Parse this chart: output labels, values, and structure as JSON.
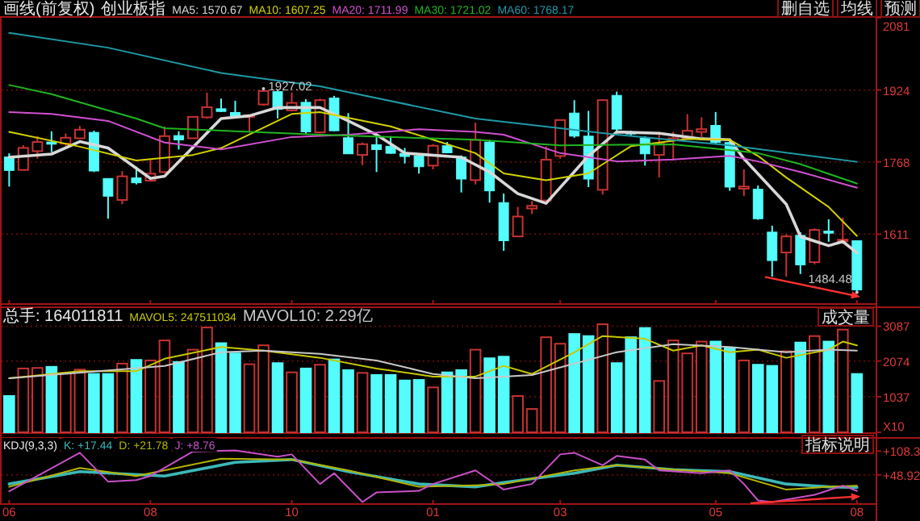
{
  "chart_data": [
    {
      "type": "candlestick",
      "subtitle": "画线(前复权)",
      "title": "创业板指",
      "categories": [
        "06",
        null,
        null,
        null,
        null,
        null,
        null,
        null,
        null,
        null,
        "08",
        null,
        null,
        null,
        null,
        null,
        null,
        null,
        null,
        null,
        "10",
        null,
        null,
        null,
        null,
        null,
        null,
        null,
        null,
        null,
        "01",
        null,
        null,
        null,
        null,
        null,
        null,
        null,
        null,
        "03",
        null,
        null,
        null,
        null,
        null,
        null,
        null,
        null,
        null,
        null,
        "05",
        null,
        null,
        null,
        null,
        null,
        null,
        null,
        null,
        null,
        "08"
      ],
      "ohlc": [
        [
          1778.5,
          1786.6,
          1714.4,
          1749.4
        ],
        [
          1750.5,
          1804.1,
          1749.4,
          1798.3
        ],
        [
          1791.3,
          1823.9,
          1775,
          1811.1
        ],
        [
          1811.1,
          1834.4,
          1789,
          1806.4
        ],
        [
          1807.6,
          1829.7,
          1803,
          1820.4
        ],
        [
          1819.2,
          1846,
          1819.2,
          1837.9
        ],
        [
          1832.1,
          1835.6,
          1745.9,
          1748.2
        ],
        [
          1731.9,
          1731.9,
          1644.5,
          1693.5
        ],
        [
          1685.3,
          1748.2,
          1676,
          1736.6
        ],
        [
          1733.1,
          1757.5,
          1719.1,
          1722.6
        ],
        [
          1727.2,
          1773.8,
          1725,
          1742.4
        ],
        [
          1745.9,
          1844.9,
          1743.5,
          1823.9
        ],
        [
          1825.1,
          1834.4,
          1794.8,
          1815.8
        ],
        [
          1819.2,
          1865.8,
          1819.2,
          1865.8
        ],
        [
          1864.7,
          1918.3,
          1862.3,
          1886.8
        ],
        [
          1883.3,
          1905.4,
          1876.3,
          1877.5
        ],
        [
          1875.2,
          1900.8,
          1862.3,
          1868.2
        ],
        [
          1867,
          1870.5,
          1832.1,
          1869.3
        ],
        [
          1892.6,
          1927.02,
          1890.3,
          1922
        ],
        [
          1920.6,
          1922.9,
          1862.3,
          1882.1
        ],
        [
          1879.8,
          1918.3,
          1877.5,
          1896.1
        ],
        [
          1897.3,
          1904.3,
          1827.4,
          1833.2
        ],
        [
          1832.1,
          1905.4,
          1829.7,
          1902
        ],
        [
          1906.6,
          1911.3,
          1834.4,
          1835.6
        ],
        [
          1820.4,
          1874,
          1785.5,
          1785.5
        ],
        [
          1783.2,
          1810,
          1761,
          1806.4
        ],
        [
          1805.3,
          1821.6,
          1745.9,
          1794.8
        ],
        [
          1801.8,
          1823.9,
          1785.5,
          1786.6
        ],
        [
          1786.6,
          1798.3,
          1764.5,
          1779.7
        ],
        [
          1780.8,
          1783.2,
          1742.4,
          1757.5
        ],
        [
          1759.9,
          1806.4,
          1751.7,
          1803
        ],
        [
          1803,
          1811.1,
          1786.6,
          1787.8
        ],
        [
          1778.5,
          1782,
          1701.6,
          1730.7
        ],
        [
          1728.4,
          1853,
          1719.1,
          1815.8
        ],
        [
          1811.1,
          1815.8,
          1679.5,
          1705.1
        ],
        [
          1679.5,
          1699.3,
          1574.7,
          1596.8
        ],
        [
          1606.1,
          1670.2,
          1604.9,
          1649.2
        ],
        [
          1666.7,
          1683,
          1655,
          1672.5
        ],
        [
          1684.1,
          1801.8,
          1678.3,
          1772.7
        ],
        [
          1780.8,
          1858.9,
          1775,
          1858.9
        ],
        [
          1874,
          1902,
          1820.4,
          1823.9
        ],
        [
          1823.9,
          1878.7,
          1713.3,
          1730.7
        ],
        [
          1707.4,
          1902,
          1697,
          1902
        ],
        [
          1912.4,
          1920.6,
          1833.2,
          1839.1
        ],
        [
          1832.1,
          1835.6,
          1823.9,
          1828.6
        ],
        [
          1819.2,
          1823.9,
          1759.9,
          1785.5
        ],
        [
          1783.2,
          1833.2,
          1734.2,
          1807.6
        ],
        [
          1814.6,
          1833.2,
          1771.5,
          1819.2
        ],
        [
          1819.2,
          1871.7,
          1819.2,
          1835.6
        ],
        [
          1833.2,
          1864.7,
          1821.6,
          1839.1
        ],
        [
          1847.2,
          1876.3,
          1807.6,
          1810
        ],
        [
          1810,
          1815.8,
          1705.1,
          1713.3
        ],
        [
          1709.8,
          1751.7,
          1693.5,
          1714.4
        ],
        [
          1708.6,
          1716.8,
          1642.2,
          1644.5
        ],
        [
          1615.4,
          1629.4,
          1518.8,
          1553.7
        ],
        [
          1571.2,
          1610.8,
          1518.8,
          1606.1
        ],
        [
          1608.4,
          1615.4,
          1524.6,
          1544.4
        ],
        [
          1550.2,
          1623.6,
          1545.5,
          1620.1
        ],
        [
          1617.8,
          1643.4,
          1594.5,
          1613.1
        ],
        [
          1596.8,
          1646.9,
          1595.6,
          1599.1
        ],
        [
          1596.8,
          1596.8,
          1484.48,
          1490
        ]
      ],
      "series": [
        {
          "name": "MA5: 1570.67",
          "type": "line",
          "color": "#d8d8d8",
          "values": [
            1778,
            null,
            null,
            1785,
            null,
            1812,
            null,
            1798,
            null,
            null,
            1732,
            1737,
            null,
            null,
            null,
            1862,
            null,
            1868,
            null,
            1886,
            null,
            null,
            1886,
            null,
            1857,
            null,
            1827,
            null,
            1787,
            null,
            null,
            null,
            1778,
            null,
            1746,
            null,
            1699,
            null,
            1678,
            null,
            null,
            1781,
            null,
            1833,
            null,
            null,
            1830,
            null,
            null,
            1818,
            null,
            1816,
            1775,
            null,
            null,
            1676,
            1606,
            null,
            1586,
            1595,
            1570.67
          ]
        },
        {
          "name": "MA10: 1607.25",
          "type": "line",
          "color": "#d2d200",
          "values": [
            1833,
            null,
            null,
            null,
            null,
            1801,
            null,
            null,
            null,
            1771,
            null,
            null,
            null,
            1783,
            null,
            1798,
            null,
            null,
            null,
            null,
            1872,
            null,
            1876,
            null,
            null,
            null,
            null,
            1845,
            null,
            null,
            1816,
            null,
            null,
            1787,
            null,
            1743,
            null,
            null,
            1728,
            null,
            null,
            1743,
            null,
            null,
            1802,
            null,
            null,
            null,
            1818,
            null,
            null,
            1816,
            null,
            1781,
            null,
            1734,
            null,
            null,
            1670,
            null,
            1607.25
          ]
        },
        {
          "name": "MA20: 1711.99",
          "type": "line",
          "color": "#d050d0",
          "values": [
            1876,
            null,
            null,
            1872,
            null,
            null,
            null,
            1857,
            null,
            null,
            null,
            1810,
            null,
            null,
            null,
            1795,
            null,
            null,
            null,
            null,
            1822,
            null,
            null,
            null,
            1827,
            null,
            null,
            null,
            null,
            1839,
            null,
            null,
            null,
            1833,
            null,
            1827,
            null,
            null,
            null,
            1787,
            null,
            null,
            null,
            1769,
            null,
            null,
            null,
            1773,
            null,
            null,
            null,
            1781,
            null,
            1769,
            null,
            null,
            1746,
            null,
            null,
            null,
            1711.99
          ]
        },
        {
          "name": "MA30: 1721.02",
          "type": "line",
          "color": "#20b420",
          "values": [
            1935,
            null,
            null,
            1915,
            null,
            null,
            null,
            null,
            null,
            1862,
            null,
            1841,
            null,
            null,
            null,
            1836,
            null,
            null,
            null,
            null,
            null,
            null,
            1827,
            null,
            null,
            null,
            null,
            null,
            null,
            null,
            null,
            null,
            null,
            1816,
            null,
            null,
            null,
            null,
            null,
            1804,
            null,
            null,
            null,
            null,
            null,
            null,
            null,
            1806,
            null,
            null,
            null,
            null,
            null,
            1787,
            null,
            null,
            1763,
            null,
            null,
            null,
            1721.02
          ]
        },
        {
          "name": "MA60: 1768.17",
          "type": "line",
          "color": "#1e9aa6",
          "values": [
            2048,
            null,
            null,
            null,
            null,
            null,
            null,
            2016,
            null,
            null,
            null,
            null,
            null,
            null,
            null,
            1961,
            null,
            null,
            null,
            null,
            null,
            null,
            1932,
            null,
            null,
            null,
            null,
            null,
            null,
            null,
            null,
            null,
            null,
            1862,
            null,
            null,
            null,
            null,
            null,
            null,
            null,
            null,
            null,
            1827,
            null,
            null,
            null,
            null,
            null,
            null,
            null,
            1804,
            null,
            null,
            null,
            null,
            null,
            null,
            null,
            null,
            1768.17
          ]
        }
      ],
      "ylim": [
        1461,
        2081
      ],
      "yticks": [
        1611,
        1768,
        1924,
        2081
      ],
      "grid": "y",
      "legend": "top left",
      "tick_labels": "y",
      "annotations": [
        "删自选",
        "均线",
        "预测",
        {
          "text": "1927.02",
          "y": 1927.02
        },
        "1484.48"
      ]
    },
    {
      "type": "bar",
      "title": "总手: 164011811",
      "categories": [
        "06",
        null,
        null,
        null,
        null,
        null,
        null,
        null,
        null,
        null,
        "08",
        null,
        null,
        null,
        null,
        null,
        null,
        null,
        null,
        null,
        "10",
        null,
        null,
        null,
        null,
        null,
        null,
        null,
        null,
        null,
        "01",
        null,
        null,
        null,
        null,
        null,
        null,
        null,
        null,
        "03",
        null,
        null,
        null,
        null,
        null,
        null,
        null,
        null,
        null,
        null,
        "05",
        null,
        null,
        null,
        null,
        null,
        null,
        null,
        null,
        null,
        "08"
      ],
      "series": [
        {
          "type": "bar",
          "colors": [
            "#54fcfc",
            "#c83232",
            "#c83232",
            "#54fcfc",
            "#c83232",
            "#c83232",
            "#54fcfc",
            "#54fcfc",
            "#c83232",
            "#54fcfc",
            "#c83232",
            "#c83232",
            "#54fcfc",
            "#c83232",
            "#c83232",
            "#54fcfc",
            "#54fcfc",
            "#c83232",
            "#c83232",
            "#54fcfc",
            "#c83232",
            "#54fcfc",
            "#c83232",
            "#54fcfc",
            "#54fcfc",
            "#c83232",
            "#54fcfc",
            "#54fcfc",
            "#54fcfc",
            "#54fcfc",
            "#c83232",
            "#54fcfc",
            "#54fcfc",
            "#c83232",
            "#54fcfc",
            "#54fcfc",
            "#c83232",
            "#c83232",
            "#c83232",
            "#c83232",
            "#54fcfc",
            "#54fcfc",
            "#c83232",
            "#54fcfc",
            "#54fcfc",
            "#54fcfc",
            "#c83232",
            "#c83232",
            "#c83232",
            "#c83232",
            "#54fcfc",
            "#54fcfc",
            "#c83232",
            "#54fcfc",
            "#54fcfc",
            "#c83232",
            "#54fcfc",
            "#c83232",
            "#54fcfc",
            "#c83232",
            "#54fcfc"
          ],
          "values": [
            1056,
            1857,
            1873,
            1905,
            1730,
            1824,
            1697,
            1697,
            1999,
            2107,
            2091,
            2673,
            2046,
            2404,
            3050,
            2593,
            2296,
            1980,
            2531,
            2013,
            1744,
            1857,
            1966,
            2121,
            1810,
            1730,
            1669,
            1669,
            1508,
            1524,
            1306,
            1744,
            1810,
            2404,
            2154,
            2201,
            1056,
            679,
            2767,
            2578,
            2861,
            2800,
            3144,
            2013,
            2767,
            3036,
            1494,
            2673,
            2296,
            2640,
            2640,
            2451,
            2091,
            1966,
            1933,
            2357,
            2612,
            2800,
            2640,
            2989,
            1697
          ]
        },
        {
          "name": "MAVOL5: 247511034",
          "type": "line",
          "color": "#c8c800",
          "values": [
            1573,
            null,
            null,
            null,
            null,
            1777,
            null,
            null,
            null,
            1777,
            null,
            2140,
            null,
            null,
            null,
            2484,
            null,
            null,
            2376,
            null,
            null,
            null,
            2168,
            null,
            null,
            null,
            1857,
            null,
            null,
            null,
            1622,
            null,
            null,
            1622,
            null,
            1933,
            null,
            1697,
            null,
            null,
            2329,
            null,
            2800,
            null,
            null,
            2721,
            null,
            2376,
            null,
            2531,
            null,
            2329,
            null,
            2404,
            null,
            2168,
            null,
            null,
            2404,
            2640,
            2531
          ]
        },
        {
          "name": "MAVOL10: 2.29亿",
          "type": "line",
          "color": "#c8c8c8",
          "values": [
            1573,
            null,
            null,
            null,
            null,
            null,
            null,
            null,
            null,
            null,
            null,
            1933,
            null,
            null,
            null,
            2329,
            null,
            null,
            2376,
            null,
            null,
            null,
            2282,
            null,
            null,
            null,
            2091,
            null,
            null,
            null,
            1697,
            null,
            null,
            1573,
            null,
            null,
            null,
            1667,
            null,
            null,
            null,
            null,
            null,
            2329,
            null,
            null,
            null,
            2562,
            null,
            null,
            null,
            2484,
            null,
            null,
            null,
            2329,
            null,
            null,
            2404,
            null,
            2376
          ]
        }
      ],
      "ylim": [
        0,
        3615
      ],
      "yticks": [
        {
          "value": 0,
          "label": "X10"
        },
        1037,
        2074,
        3087
      ],
      "grid": "y",
      "legend": "top left",
      "tick_labels": "y",
      "annotations": [
        "成交量"
      ]
    },
    {
      "type": "line",
      "title": "KDJ(9,3,3)",
      "categories": [
        "06",
        null,
        null,
        null,
        null,
        null,
        null,
        null,
        null,
        null,
        "08",
        null,
        null,
        null,
        null,
        null,
        null,
        null,
        null,
        null,
        "10",
        null,
        null,
        null,
        null,
        null,
        null,
        null,
        null,
        null,
        "01",
        null,
        null,
        null,
        null,
        null,
        null,
        null,
        null,
        "03",
        null,
        null,
        null,
        null,
        null,
        null,
        null,
        null,
        null,
        null,
        "05",
        null,
        null,
        null,
        null,
        null,
        null,
        null,
        null,
        null,
        "08"
      ],
      "series": [
        {
          "name": "K: +17.44",
          "color": "#3cb8b8",
          "values": [
            26,
            null,
            null,
            null,
            null,
            57,
            null,
            null,
            null,
            null,
            null,
            46,
            null,
            null,
            null,
            null,
            80,
            null,
            null,
            null,
            87,
            null,
            null,
            null,
            57,
            null,
            null,
            null,
            null,
            26,
            null,
            null,
            null,
            19,
            null,
            30,
            null,
            null,
            null,
            null,
            53,
            null,
            null,
            73,
            null,
            null,
            null,
            62,
            null,
            null,
            null,
            57,
            null,
            null,
            null,
            26,
            null,
            null,
            19,
            null,
            17.44
          ]
        },
        {
          "name": "D: +21.78",
          "color": "#b4b400",
          "values": [
            19,
            null,
            null,
            null,
            null,
            66,
            null,
            null,
            null,
            46,
            null,
            null,
            null,
            null,
            null,
            89,
            null,
            null,
            null,
            null,
            87,
            null,
            null,
            null,
            60,
            null,
            null,
            null,
            null,
            19,
            null,
            null,
            null,
            23,
            null,
            26,
            null,
            null,
            null,
            null,
            60,
            null,
            null,
            73,
            null,
            null,
            null,
            62,
            null,
            null,
            null,
            53,
            null,
            null,
            null,
            12,
            null,
            null,
            19,
            null,
            21.78
          ]
        },
        {
          "name": "J: +8.76",
          "color": "#c850c8",
          "values": [
            8,
            null,
            46,
            null,
            null,
            104,
            null,
            32,
            null,
            36,
            46,
            null,
            null,
            107,
            null,
            null,
            110,
            null,
            null,
            94,
            100,
            null,
            26,
            53,
            null,
            -19,
            5,
            null,
            null,
            9,
            26,
            null,
            null,
            60,
            null,
            12,
            null,
            26,
            null,
            100,
            104,
            null,
            73,
            96,
            null,
            87,
            60,
            null,
            null,
            53,
            null,
            60,
            26,
            -15,
            -19,
            null,
            null,
            -1,
            null,
            22,
            8.76
          ]
        }
      ],
      "ylim": [
        -22,
        139
      ],
      "yticks": [
        {
          "value": 48.92,
          "label": "+48.92"
        },
        {
          "value": 108.3,
          "label": "+108.3"
        }
      ],
      "grid": "y",
      "legend": "top left",
      "annotations": [
        "指标说明"
      ]
    }
  ]
}
